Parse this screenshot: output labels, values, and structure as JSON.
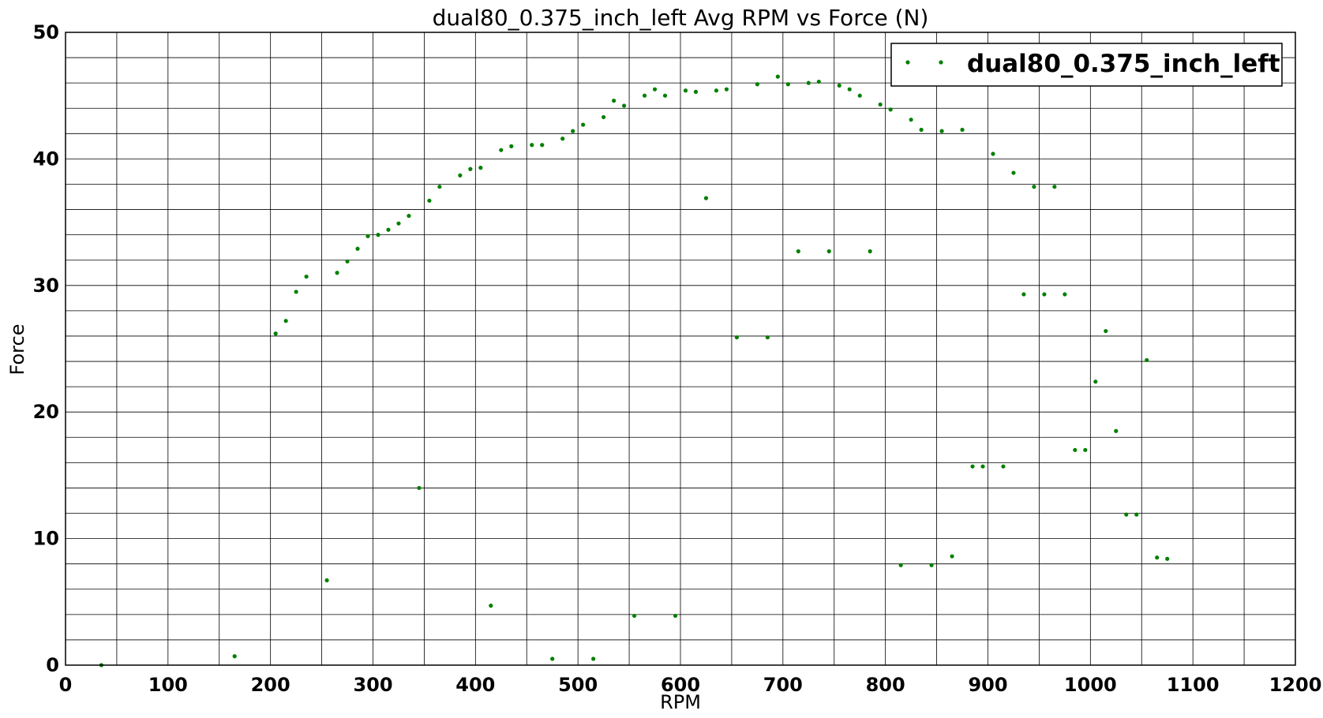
{
  "chart_data": {
    "type": "scatter",
    "title": "dual80_0.375_inch_left Avg RPM vs Force (N)",
    "xlabel": "RPM",
    "ylabel": "Force",
    "xlim": [
      0,
      1200
    ],
    "ylim": [
      0,
      50
    ],
    "xticks": [
      0,
      100,
      200,
      300,
      400,
      500,
      600,
      700,
      800,
      900,
      1000,
      1100,
      1200
    ],
    "yticks": [
      0,
      10,
      20,
      30,
      40,
      50
    ],
    "x_minor_step": 50,
    "y_minor_step": 2,
    "grid": true,
    "legend_position": "top-right",
    "series": [
      {
        "name": "dual80_0.375_inch_left",
        "color": "#008000",
        "marker": "dot",
        "points": [
          [
            35,
            0.0
          ],
          [
            165,
            0.7
          ],
          [
            205,
            26.2
          ],
          [
            215,
            27.2
          ],
          [
            225,
            29.5
          ],
          [
            235,
            30.7
          ],
          [
            255,
            6.7
          ],
          [
            265,
            31.0
          ],
          [
            275,
            31.9
          ],
          [
            285,
            32.9
          ],
          [
            295,
            33.9
          ],
          [
            305,
            34.0
          ],
          [
            315,
            34.4
          ],
          [
            325,
            34.9
          ],
          [
            335,
            35.5
          ],
          [
            345,
            14.0
          ],
          [
            355,
            36.7
          ],
          [
            365,
            37.8
          ],
          [
            385,
            38.7
          ],
          [
            395,
            39.2
          ],
          [
            405,
            39.3
          ],
          [
            415,
            4.7
          ],
          [
            425,
            40.7
          ],
          [
            435,
            41.0
          ],
          [
            455,
            41.1
          ],
          [
            465,
            41.1
          ],
          [
            475,
            0.5
          ],
          [
            485,
            41.6
          ],
          [
            495,
            42.2
          ],
          [
            505,
            42.7
          ],
          [
            515,
            0.5
          ],
          [
            525,
            43.3
          ],
          [
            535,
            44.6
          ],
          [
            545,
            44.2
          ],
          [
            555,
            3.9
          ],
          [
            565,
            45.0
          ],
          [
            575,
            45.5
          ],
          [
            585,
            45.0
          ],
          [
            595,
            3.9
          ],
          [
            605,
            45.4
          ],
          [
            615,
            45.3
          ],
          [
            625,
            36.9
          ],
          [
            635,
            45.4
          ],
          [
            645,
            45.5
          ],
          [
            655,
            25.9
          ],
          [
            675,
            45.9
          ],
          [
            685,
            25.9
          ],
          [
            695,
            46.5
          ],
          [
            705,
            45.9
          ],
          [
            715,
            32.7
          ],
          [
            725,
            46.0
          ],
          [
            735,
            46.1
          ],
          [
            745,
            32.7
          ],
          [
            755,
            45.8
          ],
          [
            765,
            45.5
          ],
          [
            775,
            45.0
          ],
          [
            785,
            32.7
          ],
          [
            795,
            44.3
          ],
          [
            805,
            43.9
          ],
          [
            815,
            7.9
          ],
          [
            825,
            43.1
          ],
          [
            835,
            42.3
          ],
          [
            845,
            7.9
          ],
          [
            855,
            42.2
          ],
          [
            865,
            8.6
          ],
          [
            875,
            42.3
          ],
          [
            885,
            15.7
          ],
          [
            895,
            15.7
          ],
          [
            905,
            40.4
          ],
          [
            915,
            15.7
          ],
          [
            925,
            38.9
          ],
          [
            935,
            29.3
          ],
          [
            945,
            37.8
          ],
          [
            955,
            29.3
          ],
          [
            965,
            37.8
          ],
          [
            975,
            29.3
          ],
          [
            985,
            17.0
          ],
          [
            995,
            17.0
          ],
          [
            1005,
            22.4
          ],
          [
            1015,
            26.4
          ],
          [
            1025,
            18.5
          ],
          [
            1035,
            11.9
          ],
          [
            1045,
            11.9
          ],
          [
            1055,
            24.1
          ],
          [
            1065,
            8.5
          ],
          [
            1075,
            8.4
          ]
        ]
      }
    ]
  }
}
